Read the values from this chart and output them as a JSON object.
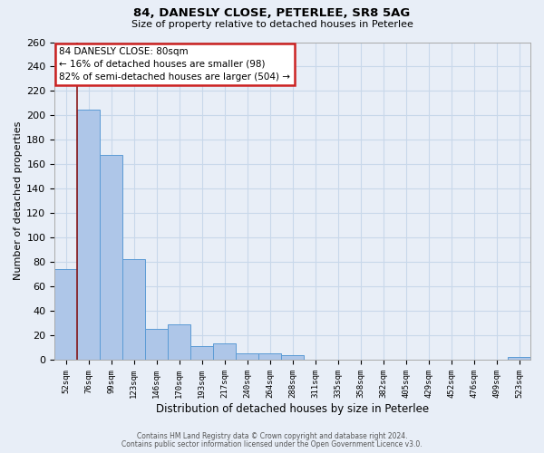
{
  "title1": "84, DANESLY CLOSE, PETERLEE, SR8 5AG",
  "title2": "Size of property relative to detached houses in Peterlee",
  "xlabel": "Distribution of detached houses by size in Peterlee",
  "ylabel": "Number of detached properties",
  "bar_labels": [
    "52sqm",
    "76sqm",
    "99sqm",
    "123sqm",
    "146sqm",
    "170sqm",
    "193sqm",
    "217sqm",
    "240sqm",
    "264sqm",
    "288sqm",
    "311sqm",
    "335sqm",
    "358sqm",
    "382sqm",
    "405sqm",
    "429sqm",
    "452sqm",
    "476sqm",
    "499sqm",
    "523sqm"
  ],
  "bar_values": [
    74,
    205,
    168,
    82,
    25,
    29,
    11,
    13,
    5,
    5,
    4,
    0,
    0,
    0,
    0,
    0,
    0,
    0,
    0,
    0,
    2
  ],
  "bar_color": "#aec6e8",
  "bar_edge_color": "#5b9bd5",
  "grid_color": "#c8d8ea",
  "bg_color": "#e8eef7",
  "vline_color": "#8b1a1a",
  "vline_x_idx": 0.5,
  "annotation_line1": "84 DANESLY CLOSE: 80sqm",
  "annotation_line2": "← 16% of detached houses are smaller (98)",
  "annotation_line3": "82% of semi-detached houses are larger (504) →",
  "annotation_box_color": "#ffffff",
  "annotation_box_edge": "#cc2222",
  "ylim": [
    0,
    260
  ],
  "yticks": [
    0,
    20,
    40,
    60,
    80,
    100,
    120,
    140,
    160,
    180,
    200,
    220,
    240,
    260
  ],
  "footer1": "Contains HM Land Registry data © Crown copyright and database right 2024.",
  "footer2": "Contains public sector information licensed under the Open Government Licence v3.0."
}
